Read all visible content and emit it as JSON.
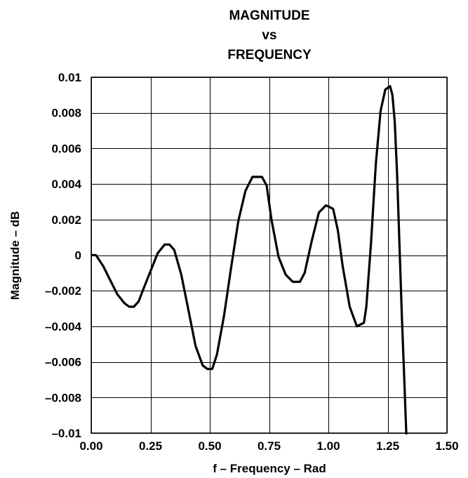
{
  "chart_data": {
    "type": "line",
    "title_lines": [
      "MAGNITUDE",
      "vs",
      "FREQUENCY"
    ],
    "xlabel": "f – Frequency – Rad",
    "ylabel": "Magnitude – dB",
    "xlim": [
      0,
      1.5
    ],
    "ylim": [
      -0.01,
      0.01
    ],
    "x_ticks": [
      0,
      0.25,
      0.5,
      0.75,
      1.0,
      1.25,
      1.5
    ],
    "x_tick_labels": [
      "0.00",
      "0.25",
      "0.50",
      "0.75",
      "1.00",
      "1.25",
      "1.50"
    ],
    "y_ticks": [
      0.01,
      0.008,
      0.006,
      0.004,
      0.002,
      0,
      -0.002,
      -0.004,
      -0.006,
      -0.008,
      -0.01
    ],
    "y_tick_labels": [
      "0.01",
      "0.008",
      "0.006",
      "0.004",
      "0.002",
      "0",
      "–0.002",
      "–0.004",
      "–0.006",
      "–0.008",
      "–0.01"
    ],
    "grid": true,
    "series": [
      {
        "color": "#000000",
        "x": [
          0,
          0.02,
          0.05,
          0.08,
          0.11,
          0.14,
          0.16,
          0.18,
          0.2,
          0.22,
          0.25,
          0.28,
          0.31,
          0.33,
          0.35,
          0.38,
          0.41,
          0.44,
          0.47,
          0.49,
          0.51,
          0.53,
          0.56,
          0.59,
          0.62,
          0.65,
          0.68,
          0.7,
          0.72,
          0.74,
          0.76,
          0.79,
          0.82,
          0.85,
          0.88,
          0.9,
          0.93,
          0.96,
          0.99,
          1.02,
          1.04,
          1.06,
          1.09,
          1.12,
          1.15,
          1.16,
          1.18,
          1.2,
          1.22,
          1.24,
          1.26,
          1.27,
          1.28,
          1.29,
          1.3,
          1.31,
          1.32,
          1.33
        ],
        "y": [
          0,
          0,
          -0.0006,
          -0.0014,
          -0.0022,
          -0.0027,
          -0.0029,
          -0.0029,
          -0.0026,
          -0.0019,
          -0.0009,
          0.0001,
          0.0006,
          0.0006,
          0.0003,
          -0.0011,
          -0.0031,
          -0.0051,
          -0.0062,
          -0.0064,
          -0.0064,
          -0.0056,
          -0.0034,
          -0.0007,
          0.0019,
          0.0036,
          0.0044,
          0.0044,
          0.0044,
          0.0039,
          0.002,
          -0.0001,
          -0.0011,
          -0.0015,
          -0.0015,
          -0.001,
          0.0008,
          0.0024,
          0.0028,
          0.0026,
          0.0014,
          -0.0006,
          -0.0029,
          -0.004,
          -0.0038,
          -0.0029,
          0.0007,
          0.0051,
          0.0081,
          0.0093,
          0.0095,
          0.009,
          0.0075,
          0.0045,
          0.0005,
          -0.0035,
          -0.007,
          -0.0105
        ]
      }
    ]
  }
}
